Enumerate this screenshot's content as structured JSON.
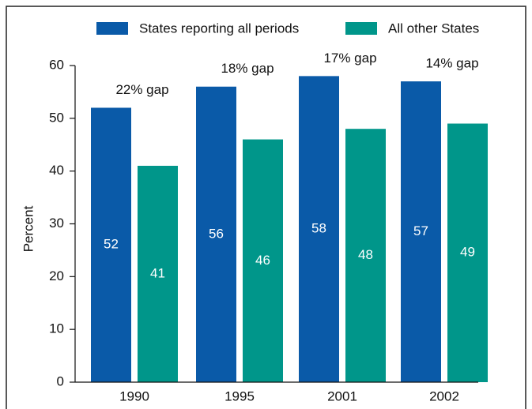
{
  "chart_data": {
    "type": "bar",
    "categories": [
      "1990",
      "1995",
      "2001",
      "2002"
    ],
    "series": [
      {
        "name": "States reporting all periods",
        "color": "#0a5aa8",
        "values": [
          52,
          56,
          58,
          57
        ]
      },
      {
        "name": "All other States",
        "color": "#00968a",
        "values": [
          41,
          46,
          48,
          49
        ]
      }
    ],
    "annotations": [
      "22% gap",
      "18% gap",
      "17% gap",
      "14% gap"
    ],
    "ylabel": "Percent",
    "ylim": [
      0,
      60
    ],
    "yticks": [
      0,
      10,
      20,
      30,
      40,
      50,
      60
    ],
    "legend": "top"
  }
}
